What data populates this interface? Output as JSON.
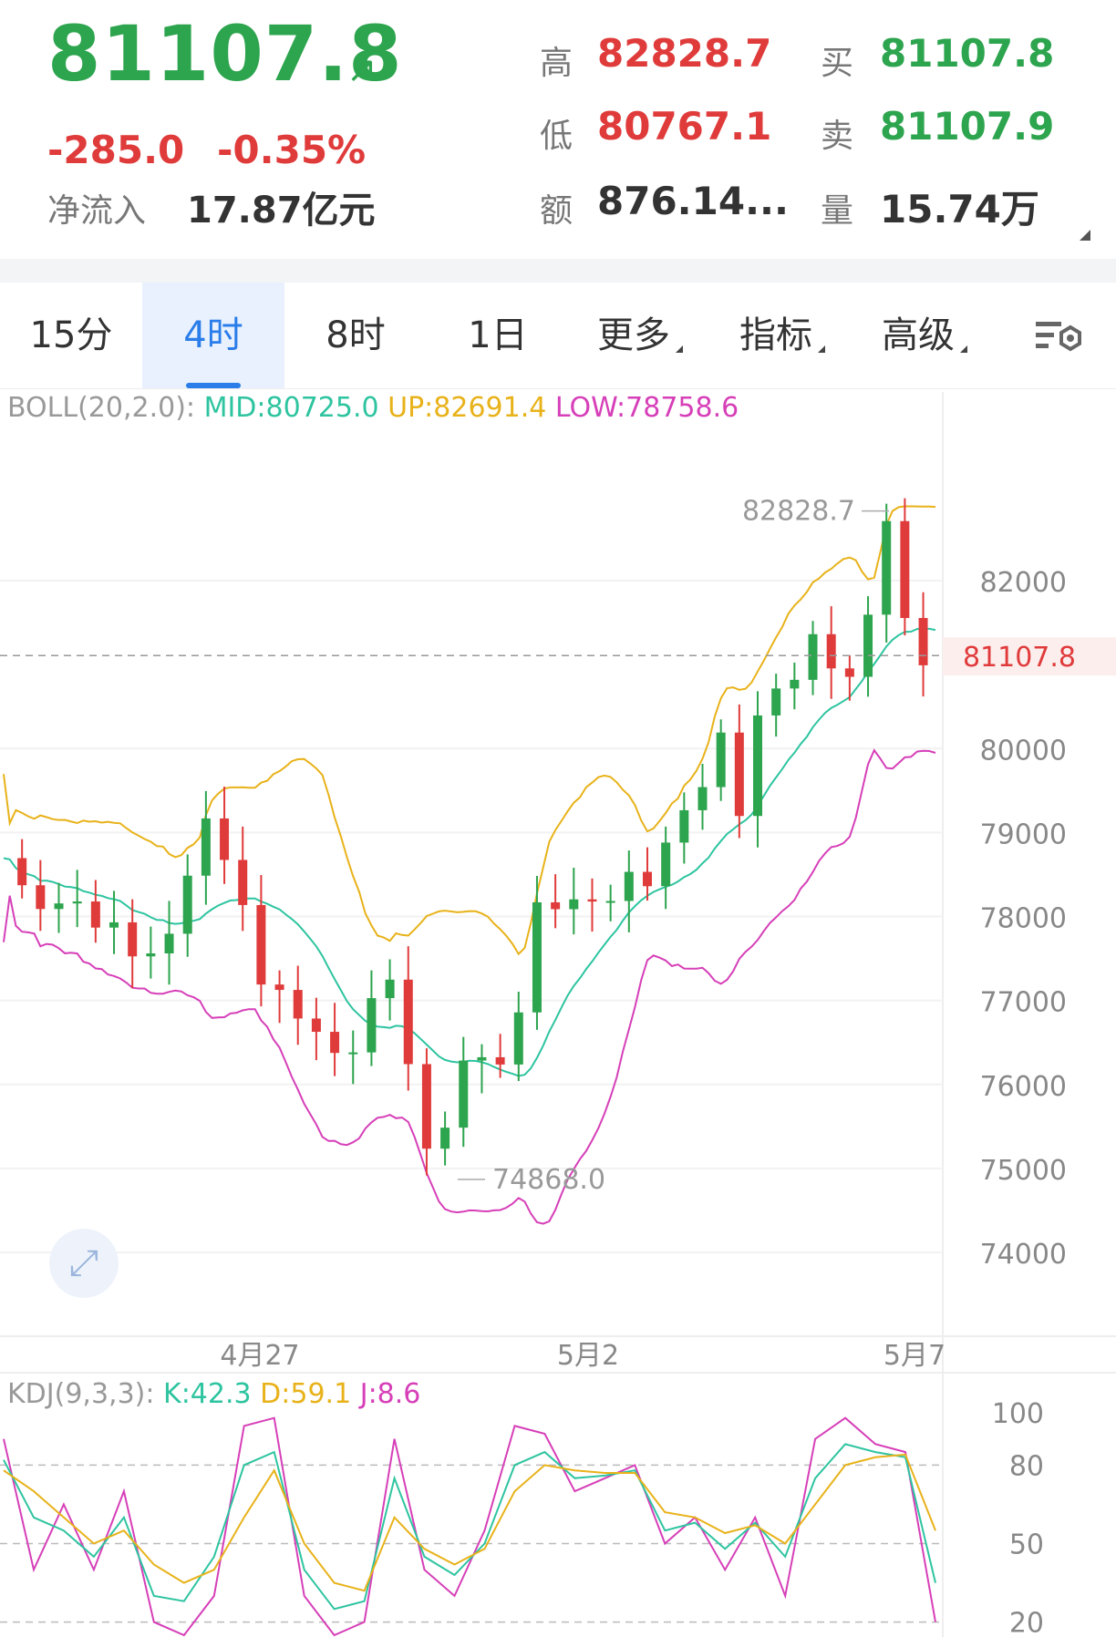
{
  "quote": {
    "price": "81107.8",
    "change": "-285.0",
    "change_pct": "-0.35%",
    "inflow_label": "净流入",
    "inflow_value": "17.87亿元",
    "high_label": "高",
    "high": "82828.7",
    "low_label": "低",
    "low": "80767.1",
    "amount_label": "额",
    "amount": "876.14...",
    "buy_label": "买",
    "buy": "81107.8",
    "sell_label": "卖",
    "sell": "81107.9",
    "volume_label": "量",
    "volume": "15.74万"
  },
  "tabs": [
    {
      "label": "15分"
    },
    {
      "label": "4时"
    },
    {
      "label": "8时"
    },
    {
      "label": "1日"
    },
    {
      "label": "更多"
    },
    {
      "label": "指标"
    },
    {
      "label": "高级"
    }
  ],
  "icons": {
    "settings": "chart-settings-icon",
    "expand": "expand-icon"
  },
  "boll": {
    "name": "BOLL(20,2.0):",
    "mid": "MID:80725.0",
    "up": "UP:82691.4",
    "low": "LOW:78758.6"
  },
  "kdj": {
    "name": "KDJ(9,3,3):",
    "k": "K:42.3",
    "d": "D:59.1",
    "j": "J:8.6"
  },
  "chart_data": {
    "type": "candlestick",
    "y_ticks": [
      "82000",
      "80000",
      "79000",
      "78000",
      "77000",
      "76000",
      "75000",
      "74000"
    ],
    "x_ticks": [
      "4月27",
      "5月2",
      "5月7"
    ],
    "last_price": "81107.8",
    "max_marker": "82828.7",
    "min_marker": "74868.0",
    "kdj_ticks": [
      "100",
      "80",
      "50",
      "20"
    ],
    "colors": {
      "up": "#2da44e",
      "down": "#e03b3b",
      "mid": "#2ec4a0",
      "upper": "#e8b21a",
      "lower": "#d63fb8"
    }
  }
}
